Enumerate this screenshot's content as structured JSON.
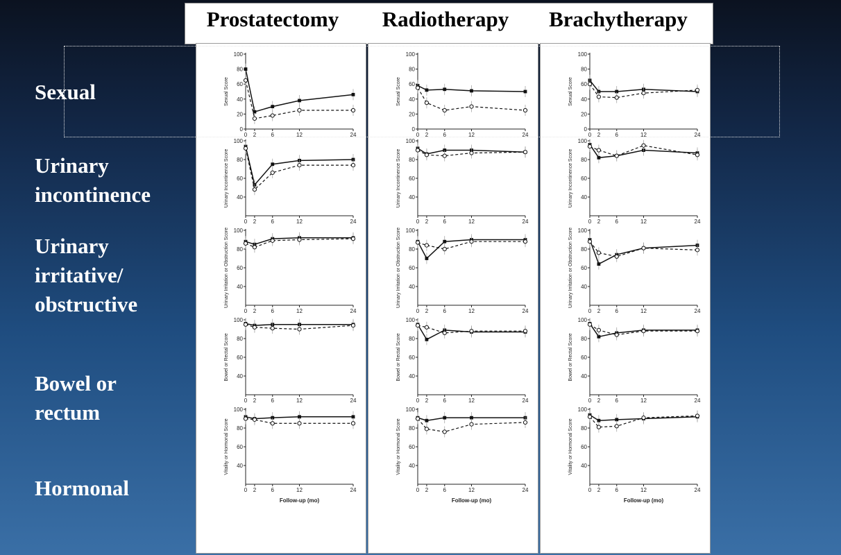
{
  "columns": [
    "Prostatectomy",
    "Radiotherapy",
    "Brachytherapy"
  ],
  "row_labels": [
    "Sexual",
    "Urinary incontinence",
    "Urinary irritative/ obstructive",
    "Bowel or rectum",
    "Hormonal"
  ],
  "chart_data": [
    {
      "type": "line",
      "panel": "Prostatectomy",
      "domain": "Sexual",
      "ylabel": "Sexual Score",
      "xlabel": "",
      "x": [
        0,
        2,
        6,
        12,
        24
      ],
      "ylim": [
        0,
        100
      ],
      "yticks": [
        0,
        20,
        40,
        60,
        80,
        100
      ],
      "series": [
        {
          "style": "solid-filled",
          "values": [
            80,
            23,
            30,
            38,
            46
          ]
        },
        {
          "style": "dashed-open",
          "values": [
            65,
            14,
            18,
            25,
            25
          ]
        }
      ]
    },
    {
      "type": "line",
      "panel": "Radiotherapy",
      "domain": "Sexual",
      "ylabel": "Sexual Score",
      "xlabel": "",
      "x": [
        0,
        2,
        6,
        12,
        24
      ],
      "ylim": [
        0,
        100
      ],
      "yticks": [
        0,
        20,
        40,
        60,
        80,
        100
      ],
      "series": [
        {
          "style": "solid-filled",
          "values": [
            58,
            52,
            53,
            51,
            50
          ]
        },
        {
          "style": "dashed-open",
          "values": [
            55,
            35,
            25,
            30,
            25
          ]
        }
      ]
    },
    {
      "type": "line",
      "panel": "Brachytherapy",
      "domain": "Sexual",
      "ylabel": "Sexual Score",
      "xlabel": "",
      "x": [
        0,
        2,
        6,
        12,
        24
      ],
      "ylim": [
        0,
        100
      ],
      "yticks": [
        0,
        20,
        40,
        60,
        80,
        100
      ],
      "series": [
        {
          "style": "solid-filled",
          "values": [
            65,
            50,
            50,
            53,
            50
          ]
        },
        {
          "style": "dashed-open",
          "values": [
            60,
            43,
            42,
            48,
            52
          ]
        }
      ]
    },
    {
      "type": "line",
      "panel": "Prostatectomy",
      "domain": "Urinary incontinence",
      "ylabel": "Urinary Incontinence Score",
      "xlabel": "",
      "x": [
        0,
        2,
        6,
        12,
        24
      ],
      "ylim": [
        20,
        100
      ],
      "yticks": [
        40,
        60,
        80,
        100
      ],
      "series": [
        {
          "style": "solid-filled",
          "values": [
            94,
            53,
            75,
            79,
            80
          ]
        },
        {
          "style": "dashed-open",
          "values": [
            92,
            48,
            66,
            74,
            74
          ]
        }
      ]
    },
    {
      "type": "line",
      "panel": "Radiotherapy",
      "domain": "Urinary incontinence",
      "ylabel": "Urinary Incontinence Score",
      "xlabel": "",
      "x": [
        0,
        2,
        6,
        12,
        24
      ],
      "ylim": [
        20,
        100
      ],
      "yticks": [
        40,
        60,
        80,
        100
      ],
      "series": [
        {
          "style": "solid-filled",
          "values": [
            92,
            86,
            90,
            90,
            88
          ]
        },
        {
          "style": "dashed-open",
          "values": [
            90,
            85,
            84,
            87,
            88
          ]
        }
      ]
    },
    {
      "type": "line",
      "panel": "Brachytherapy",
      "domain": "Urinary incontinence",
      "ylabel": "Urinary Incontinence Score",
      "xlabel": "",
      "x": [
        0,
        2,
        6,
        12,
        24
      ],
      "ylim": [
        20,
        100
      ],
      "yticks": [
        40,
        60,
        80,
        100
      ],
      "series": [
        {
          "style": "solid-filled",
          "values": [
            96,
            82,
            84,
            90,
            87
          ]
        },
        {
          "style": "dashed-open",
          "values": [
            94,
            90,
            84,
            95,
            85
          ]
        }
      ]
    },
    {
      "type": "line",
      "panel": "Prostatectomy",
      "domain": "Urinary irritative/ obstructive",
      "ylabel": "Urinary Irritation or Obstruction Score",
      "xlabel": "",
      "x": [
        0,
        2,
        6,
        12,
        24
      ],
      "ylim": [
        20,
        100
      ],
      "yticks": [
        40,
        60,
        80,
        100
      ],
      "series": [
        {
          "style": "solid-filled",
          "values": [
            88,
            85,
            91,
            92,
            92
          ]
        },
        {
          "style": "dashed-open",
          "values": [
            86,
            82,
            89,
            90,
            91
          ]
        }
      ]
    },
    {
      "type": "line",
      "panel": "Radiotherapy",
      "domain": "Urinary irritative/ obstructive",
      "ylabel": "Urinary Irritation or Obstruction Score",
      "xlabel": "",
      "x": [
        0,
        2,
        6,
        12,
        24
      ],
      "ylim": [
        20,
        100
      ],
      "yticks": [
        40,
        60,
        80,
        100
      ],
      "series": [
        {
          "style": "solid-filled",
          "values": [
            88,
            70,
            88,
            90,
            90
          ]
        },
        {
          "style": "dashed-open",
          "values": [
            87,
            84,
            80,
            88,
            88
          ]
        }
      ]
    },
    {
      "type": "line",
      "panel": "Brachytherapy",
      "domain": "Urinary irritative/ obstructive",
      "ylabel": "Urinary Irritation or Obstruction Score",
      "xlabel": "",
      "x": [
        0,
        2,
        6,
        12,
        24
      ],
      "ylim": [
        20,
        100
      ],
      "yticks": [
        40,
        60,
        80,
        100
      ],
      "series": [
        {
          "style": "solid-filled",
          "values": [
            90,
            64,
            74,
            81,
            84
          ]
        },
        {
          "style": "dashed-open",
          "values": [
            88,
            76,
            72,
            81,
            79
          ]
        }
      ]
    },
    {
      "type": "line",
      "panel": "Prostatectomy",
      "domain": "Bowel or rectum",
      "ylabel": "Bowel or Rectal Score",
      "xlabel": "",
      "x": [
        0,
        2,
        6,
        12,
        24
      ],
      "ylim": [
        20,
        100
      ],
      "yticks": [
        40,
        60,
        80,
        100
      ],
      "series": [
        {
          "style": "solid-filled",
          "values": [
            96,
            94,
            95,
            95,
            95
          ]
        },
        {
          "style": "dashed-open",
          "values": [
            95,
            92,
            91,
            90,
            94
          ]
        }
      ]
    },
    {
      "type": "line",
      "panel": "Radiotherapy",
      "domain": "Bowel or rectum",
      "ylabel": "Bowel or Rectal Score",
      "xlabel": "",
      "x": [
        0,
        2,
        6,
        12,
        24
      ],
      "ylim": [
        20,
        100
      ],
      "yticks": [
        40,
        60,
        80,
        100
      ],
      "series": [
        {
          "style": "solid-filled",
          "values": [
            95,
            79,
            89,
            87,
            87
          ]
        },
        {
          "style": "dashed-open",
          "values": [
            94,
            92,
            86,
            88,
            88
          ]
        }
      ]
    },
    {
      "type": "line",
      "panel": "Brachytherapy",
      "domain": "Bowel or rectum",
      "ylabel": "Bowel or Rectal Score",
      "xlabel": "",
      "x": [
        0,
        2,
        6,
        12,
        24
      ],
      "ylim": [
        20,
        100
      ],
      "yticks": [
        40,
        60,
        80,
        100
      ],
      "series": [
        {
          "style": "solid-filled",
          "values": [
            96,
            82,
            86,
            89,
            89
          ]
        },
        {
          "style": "dashed-open",
          "values": [
            95,
            89,
            84,
            88,
            88
          ]
        }
      ]
    },
    {
      "type": "line",
      "panel": "Prostatectomy",
      "domain": "Hormonal",
      "ylabel": "Vitality or Hormonal Score",
      "xlabel": "Follow-up (mo)",
      "x": [
        0,
        2,
        6,
        12,
        24
      ],
      "ylim": [
        20,
        100
      ],
      "yticks": [
        40,
        60,
        80,
        100
      ],
      "series": [
        {
          "style": "solid-filled",
          "values": [
            92,
            90,
            91,
            92,
            92
          ]
        },
        {
          "style": "dashed-open",
          "values": [
            90,
            89,
            85,
            85,
            85
          ]
        }
      ]
    },
    {
      "type": "line",
      "panel": "Radiotherapy",
      "domain": "Hormonal",
      "ylabel": "Vitality or Hormonal Score",
      "xlabel": "Follow-up (mo)",
      "x": [
        0,
        2,
        6,
        12,
        24
      ],
      "ylim": [
        20,
        100
      ],
      "yticks": [
        40,
        60,
        80,
        100
      ],
      "series": [
        {
          "style": "solid-filled",
          "values": [
            91,
            88,
            91,
            91,
            91
          ]
        },
        {
          "style": "dashed-open",
          "values": [
            90,
            79,
            76,
            84,
            86
          ]
        }
      ]
    },
    {
      "type": "line",
      "panel": "Brachytherapy",
      "domain": "Hormonal",
      "ylabel": "Vitality or Hormonal Score",
      "xlabel": "Follow-up (mo)",
      "x": [
        0,
        2,
        6,
        12,
        24
      ],
      "ylim": [
        20,
        100
      ],
      "yticks": [
        40,
        60,
        80,
        100
      ],
      "series": [
        {
          "style": "solid-filled",
          "values": [
            94,
            88,
            89,
            90,
            92
          ]
        },
        {
          "style": "dashed-open",
          "values": [
            92,
            81,
            82,
            91,
            93
          ]
        }
      ]
    }
  ]
}
